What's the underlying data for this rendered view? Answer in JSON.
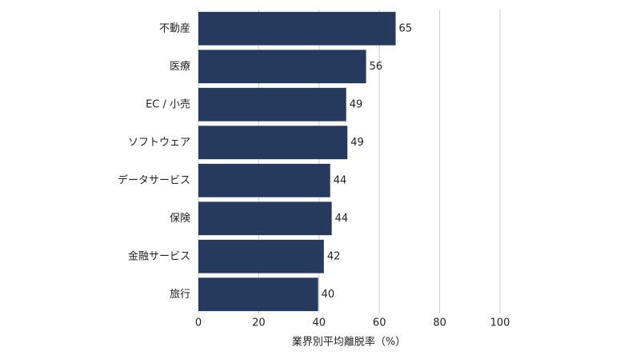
{
  "chart_data": {
    "type": "barh",
    "categories": [
      "不動産",
      "医療",
      "EC / 小売",
      "ソフトウェア",
      "データサービス",
      "保険",
      "金融サービス",
      "旅行"
    ],
    "values": [
      65.4,
      55.6,
      49.0,
      49.4,
      43.7,
      44.2,
      41.6,
      39.7
    ],
    "value_labels": [
      "65",
      "56",
      "49",
      "49",
      "44",
      "44",
      "42",
      "40"
    ],
    "color": "#263a5e",
    "xlabel": "業界別平均離脱率（%）",
    "xlim": [
      0,
      100
    ],
    "xticks": [
      0,
      20,
      40,
      60,
      80,
      100
    ],
    "grid": true
  }
}
